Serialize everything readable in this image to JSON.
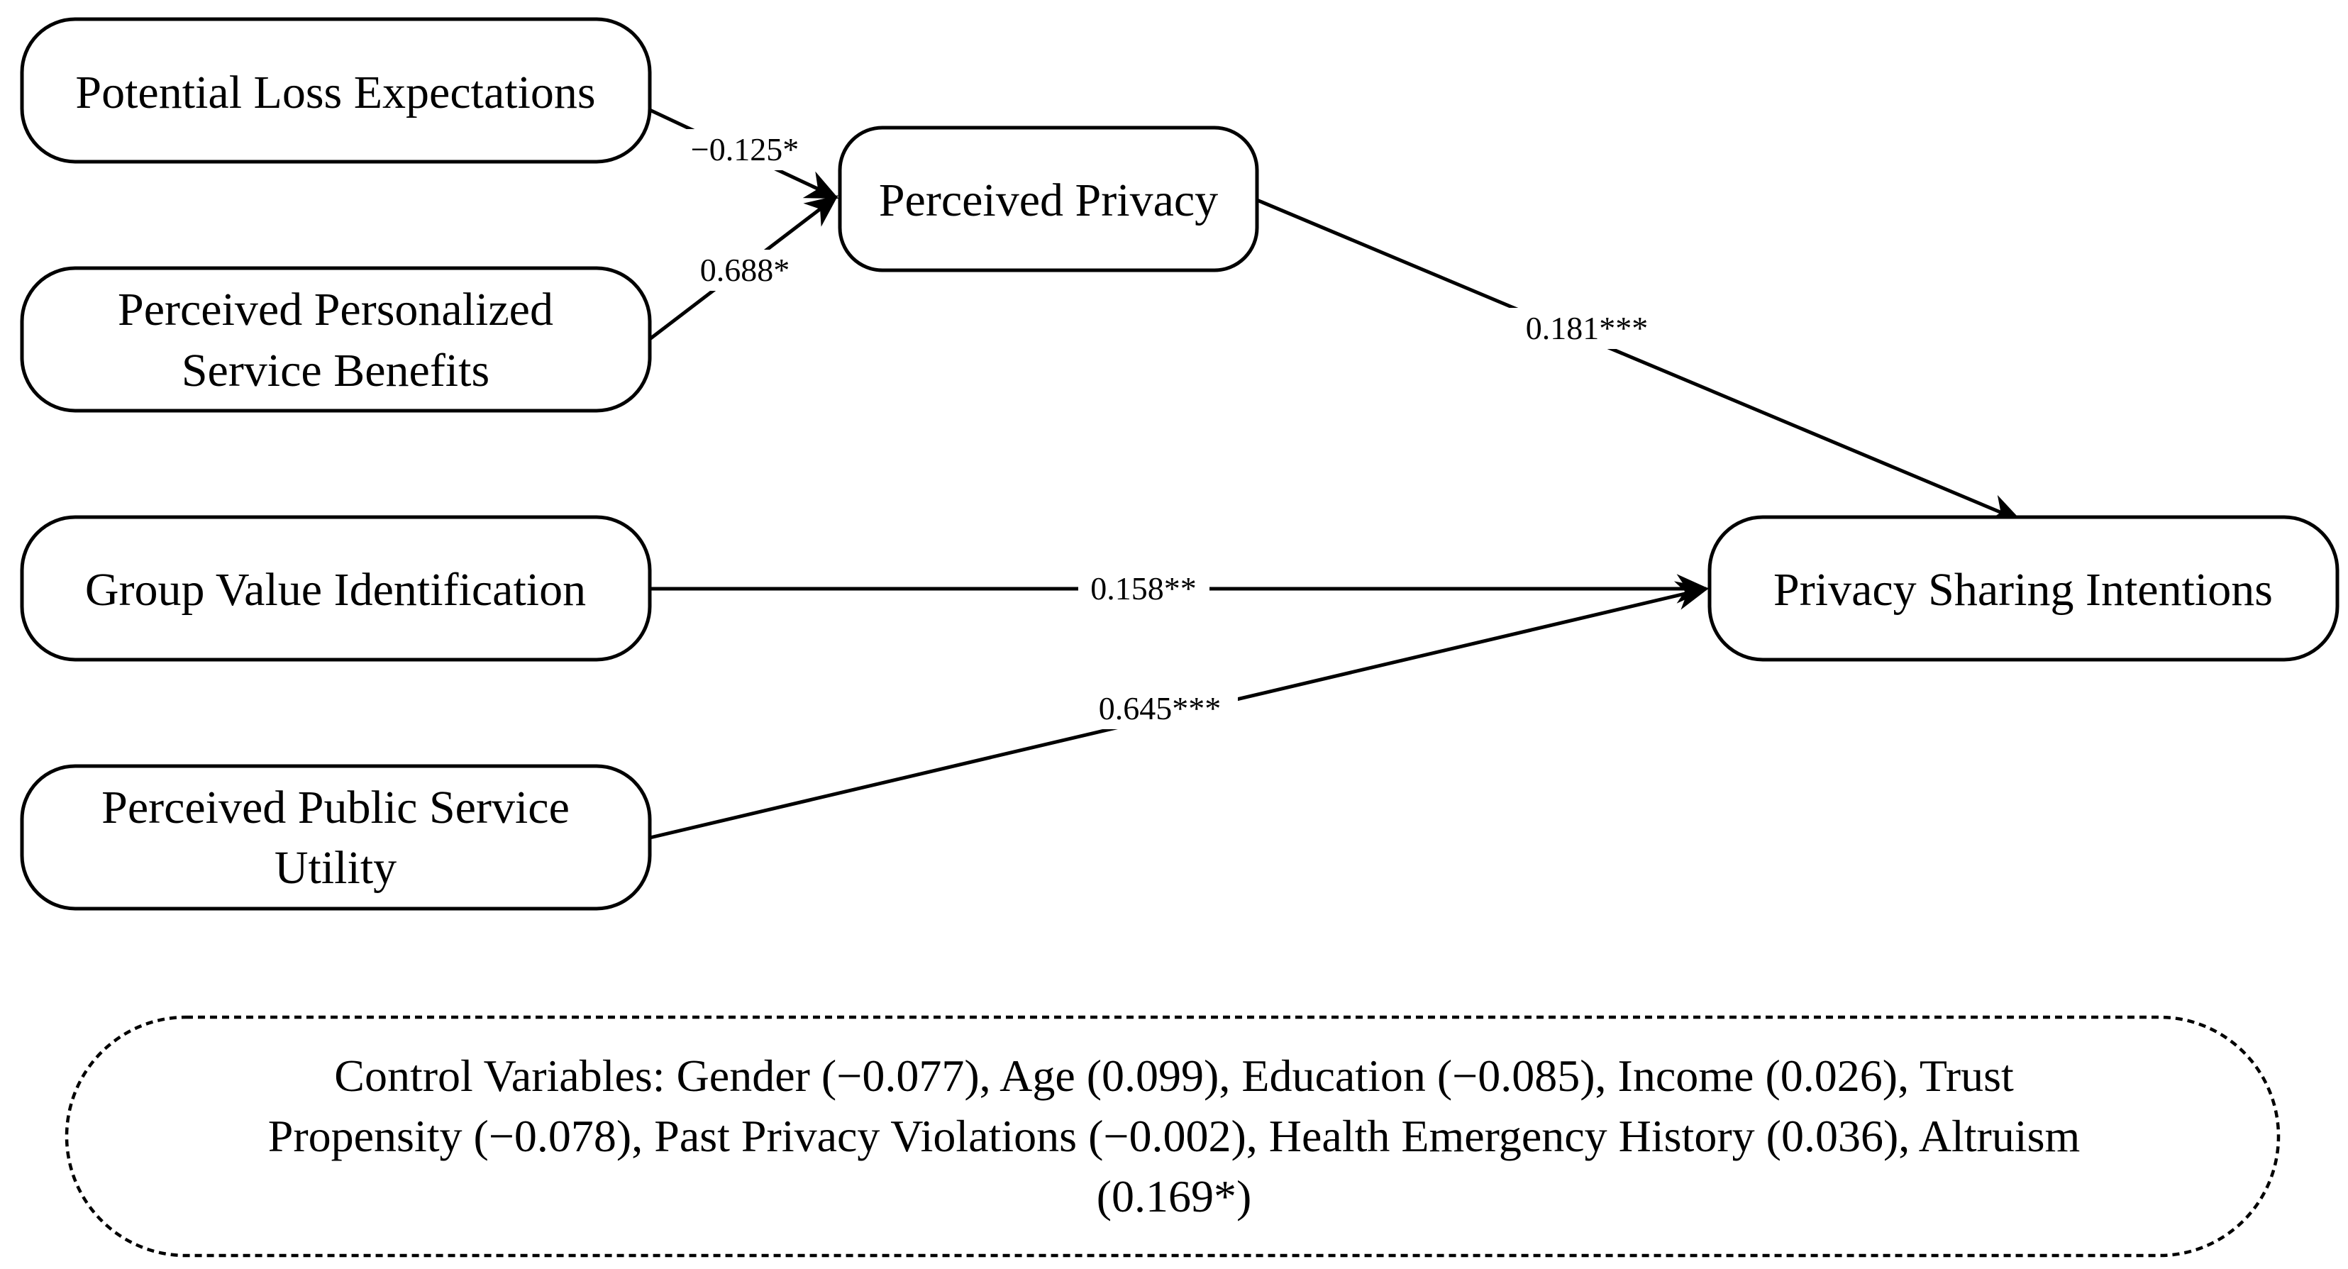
{
  "nodes": {
    "potential_loss": {
      "lines": [
        "Potential Loss Expectations"
      ]
    },
    "personalized_benefits": {
      "lines": [
        "Perceived Personalized",
        "Service Benefits"
      ]
    },
    "group_value": {
      "lines": [
        "Group Value Identification"
      ]
    },
    "public_utility": {
      "lines": [
        "Perceived Public Service",
        "Utility"
      ]
    },
    "perceived_privacy": {
      "lines": [
        "Perceived Privacy"
      ]
    },
    "sharing_intentions": {
      "lines": [
        "Privacy Sharing Intentions"
      ]
    }
  },
  "edges": {
    "loss_to_privacy": {
      "from": "potential_loss",
      "to": "perceived_privacy",
      "label": "−0.125*"
    },
    "benefits_to_privacy": {
      "from": "personalized_benefits",
      "to": "perceived_privacy",
      "label": "0.688*"
    },
    "privacy_to_intentions": {
      "from": "perceived_privacy",
      "to": "sharing_intentions",
      "label": "0.181***"
    },
    "group_to_intentions": {
      "from": "group_value",
      "to": "sharing_intentions",
      "label": "0.158**"
    },
    "utility_to_intentions": {
      "from": "public_utility",
      "to": "sharing_intentions",
      "label": "0.645***"
    }
  },
  "controls": {
    "lines": [
      "Control Variables: Gender (−0.077), Age (0.099), Education (−0.085), Income (0.026), Trust",
      "Propensity (−0.078), Past Privacy Violations (−0.002), Health Emergency History (0.036), Altruism",
      "(0.169*)"
    ]
  }
}
